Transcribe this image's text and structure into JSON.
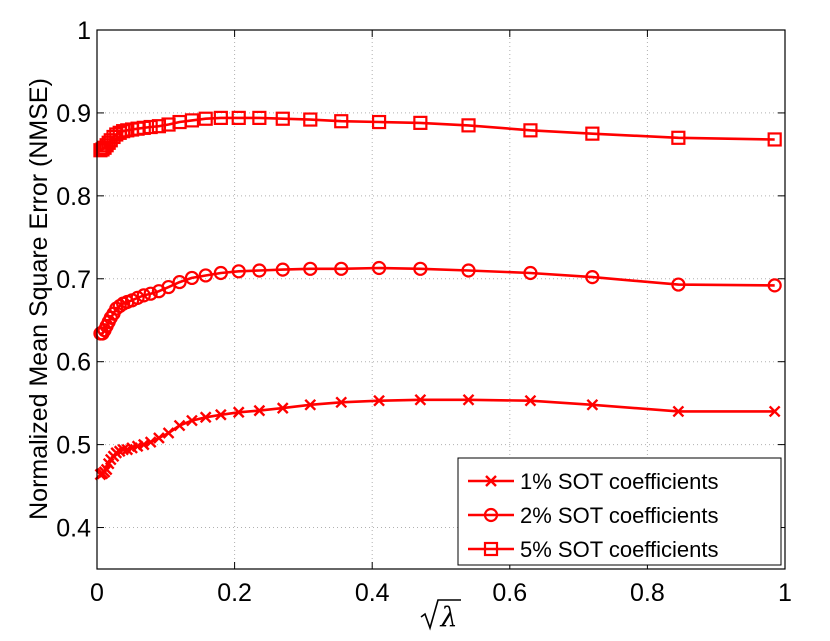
{
  "chart_data": {
    "type": "line",
    "xlabel": "√λ",
    "ylabel": "Normalized Mean Square Error (NMSE)",
    "xlim": [
      0,
      1
    ],
    "ylim": [
      0.35,
      1
    ],
    "xticks": [
      0,
      0.2,
      0.4,
      0.6,
      0.8,
      1
    ],
    "xtick_labels": [
      "0",
      "0.2",
      "0.4",
      "0.6",
      "0.8",
      "1"
    ],
    "yticks": [
      0.4,
      0.5,
      0.6,
      0.7,
      0.8,
      0.9,
      1
    ],
    "ytick_labels": [
      "0.4",
      "0.5",
      "0.6",
      "0.7",
      "0.8",
      "0.9",
      "1"
    ],
    "grid": true,
    "legend_position": "bottom-right",
    "color": "#ff0000",
    "series": [
      {
        "name": "1% SOT coefficients",
        "marker": "x",
        "x": [
          0.005,
          0.008,
          0.011,
          0.014,
          0.017,
          0.02,
          0.024,
          0.028,
          0.033,
          0.038,
          0.044,
          0.051,
          0.059,
          0.068,
          0.078,
          0.09,
          0.104,
          0.12,
          0.138,
          0.158,
          0.18,
          0.206,
          0.236,
          0.27,
          0.31,
          0.355,
          0.41,
          0.47,
          0.54,
          0.63,
          0.72,
          0.845,
          0.985
        ],
        "y": [
          0.464,
          0.465,
          0.467,
          0.47,
          0.477,
          0.482,
          0.486,
          0.49,
          0.492,
          0.494,
          0.494,
          0.496,
          0.498,
          0.5,
          0.503,
          0.508,
          0.514,
          0.523,
          0.529,
          0.533,
          0.536,
          0.539,
          0.541,
          0.544,
          0.548,
          0.551,
          0.553,
          0.554,
          0.554,
          0.553,
          0.548,
          0.54,
          0.54
        ]
      },
      {
        "name": "2% SOT coefficients",
        "marker": "o",
        "x": [
          0.005,
          0.008,
          0.011,
          0.014,
          0.017,
          0.02,
          0.024,
          0.028,
          0.033,
          0.038,
          0.044,
          0.051,
          0.059,
          0.068,
          0.078,
          0.09,
          0.104,
          0.12,
          0.138,
          0.158,
          0.18,
          0.206,
          0.236,
          0.27,
          0.31,
          0.355,
          0.41,
          0.47,
          0.54,
          0.63,
          0.72,
          0.845,
          0.985
        ],
        "y": [
          0.634,
          0.634,
          0.638,
          0.643,
          0.648,
          0.653,
          0.658,
          0.664,
          0.667,
          0.67,
          0.672,
          0.674,
          0.677,
          0.68,
          0.682,
          0.685,
          0.69,
          0.696,
          0.701,
          0.704,
          0.707,
          0.709,
          0.71,
          0.711,
          0.712,
          0.712,
          0.713,
          0.712,
          0.71,
          0.707,
          0.702,
          0.693,
          0.692
        ]
      },
      {
        "name": "5% SOT coefficients",
        "marker": "s",
        "x": [
          0.005,
          0.008,
          0.011,
          0.014,
          0.017,
          0.02,
          0.024,
          0.028,
          0.033,
          0.038,
          0.044,
          0.051,
          0.059,
          0.068,
          0.078,
          0.09,
          0.104,
          0.12,
          0.138,
          0.158,
          0.18,
          0.206,
          0.236,
          0.27,
          0.31,
          0.355,
          0.41,
          0.47,
          0.54,
          0.63,
          0.72,
          0.845,
          0.985
        ],
        "y": [
          0.855,
          0.856,
          0.858,
          0.861,
          0.864,
          0.867,
          0.871,
          0.874,
          0.876,
          0.878,
          0.879,
          0.88,
          0.881,
          0.882,
          0.883,
          0.884,
          0.886,
          0.889,
          0.891,
          0.893,
          0.894,
          0.894,
          0.894,
          0.893,
          0.892,
          0.89,
          0.889,
          0.888,
          0.885,
          0.879,
          0.875,
          0.87,
          0.868
        ]
      }
    ]
  }
}
